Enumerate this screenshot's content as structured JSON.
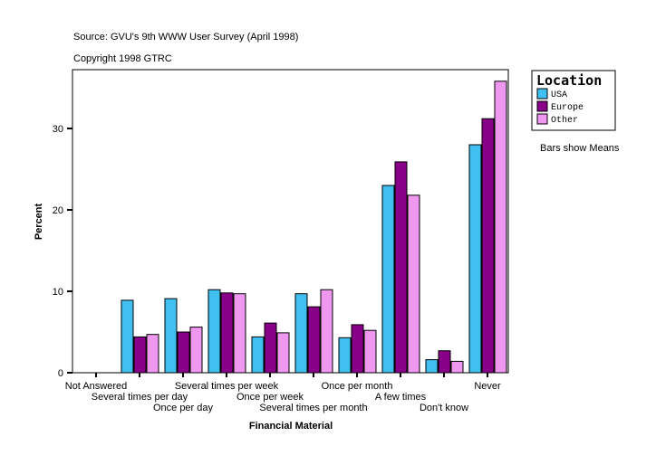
{
  "header": {
    "source": "Source: GVU's 9th WWW User Survey (April 1998)",
    "copyright": "Copyright 1998 GTRC"
  },
  "note": "Bars show Means",
  "chart_data": {
    "type": "bar",
    "xlabel": "Financial Material",
    "ylabel": "Percent",
    "ylim": [
      0,
      37.2
    ],
    "yticks": [
      0,
      10,
      20,
      30
    ],
    "grid": false,
    "legend_title": "Location",
    "legend_position": "right",
    "categories": [
      "Not Answered",
      "Several times per day",
      "Once per day",
      "Several times per week",
      "Once per week",
      "Several times per month",
      "Once per month",
      "A few times",
      "Don't know",
      "Never"
    ],
    "series": [
      {
        "name": "USA",
        "color": "#40c0f0",
        "values": [
          0,
          8.9,
          9.1,
          10.2,
          4.4,
          9.7,
          4.3,
          23.0,
          1.6,
          28.0
        ]
      },
      {
        "name": "Europe",
        "color": "#880088",
        "values": [
          0,
          4.4,
          5.0,
          9.8,
          6.1,
          8.1,
          5.9,
          25.9,
          2.7,
          31.2
        ]
      },
      {
        "name": "Other",
        "color": "#f098f0",
        "values": [
          0,
          4.7,
          5.6,
          9.7,
          4.9,
          10.2,
          5.2,
          21.8,
          1.4,
          35.8
        ]
      }
    ]
  }
}
